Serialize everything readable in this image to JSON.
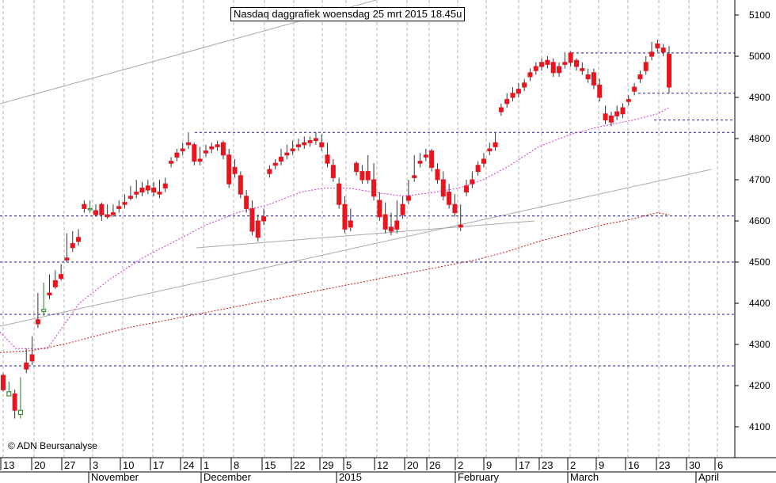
{
  "title": "Nasdaq daggrafiek woensdag 25 mrt 2015 18.45u",
  "copyright": "© ADN Beursanalyse",
  "colors": {
    "up": "#1a7f1a",
    "down": "#e8141e",
    "ma_short": "#cc33cc",
    "ma_long": "#cc1111",
    "support": "#1a1a99",
    "trend": "#a8a8a8"
  },
  "chart_data": {
    "type": "candlestick",
    "yticks": [
      4100,
      4200,
      4300,
      4400,
      4500,
      4600,
      4700,
      4800,
      4900,
      5000,
      5100
    ],
    "ylim": [
      4030,
      5120
    ],
    "day_labels": [
      "13",
      "20",
      "27",
      "3",
      "10",
      "17",
      "24",
      "1",
      "8",
      "15",
      "22",
      "29",
      "5",
      "12",
      "20",
      "26",
      "2",
      "9",
      "17",
      "23",
      "2",
      "9",
      "16",
      "23",
      "30",
      "6"
    ],
    "month_labels": [
      "November",
      "December",
      "2015",
      "February",
      "March",
      "April"
    ],
    "support_levels": [
      5008,
      4910,
      4845,
      4815,
      4612,
      4500,
      4373,
      4248
    ],
    "candles": [
      [
        4225,
        4230,
        4190,
        4185
      ],
      [
        4175,
        4210,
        4185,
        4195
      ],
      [
        4180,
        4190,
        4140,
        4120
      ],
      [
        4130,
        4220,
        4140,
        4120
      ],
      [
        4255,
        4290,
        4240,
        4230
      ],
      [
        4275,
        4320,
        4260,
        4250
      ],
      [
        4360,
        4425,
        4350,
        4340
      ],
      [
        4380,
        4450,
        4385,
        4370
      ],
      [
        4425,
        4470,
        4420,
        4410
      ],
      [
        4455,
        4480,
        4440,
        4435
      ],
      [
        4470,
        4495,
        4460,
        4455
      ],
      [
        4510,
        4570,
        4505,
        4500
      ],
      [
        4545,
        4575,
        4535,
        4525
      ],
      [
        4560,
        4580,
        4550,
        4540
      ],
      [
        4640,
        4650,
        4630,
        4620
      ],
      [
        4630,
        4650,
        4630,
        4620
      ],
      [
        4625,
        4640,
        4615,
        4610
      ],
      [
        4640,
        4645,
        4615,
        4600
      ],
      [
        4615,
        4640,
        4610,
        4605
      ],
      [
        4620,
        4640,
        4615,
        4610
      ],
      [
        4635,
        4650,
        4630,
        4620
      ],
      [
        4645,
        4665,
        4640,
        4630
      ],
      [
        4660,
        4685,
        4655,
        4650
      ],
      [
        4670,
        4700,
        4665,
        4655
      ],
      [
        4680,
        4695,
        4670,
        4660
      ],
      [
        4685,
        4700,
        4675,
        4665
      ],
      [
        4680,
        4695,
        4670,
        4660
      ],
      [
        4670,
        4700,
        4665,
        4655
      ],
      [
        4690,
        4705,
        4680,
        4670
      ],
      [
        4745,
        4755,
        4740,
        4730
      ],
      [
        4765,
        4775,
        4755,
        4745
      ],
      [
        4775,
        4790,
        4770,
        4760
      ],
      [
        4790,
        4815,
        4785,
        4775
      ],
      [
        4785,
        4790,
        4745,
        4735
      ],
      [
        4750,
        4780,
        4745,
        4735
      ],
      [
        4770,
        4785,
        4765,
        4755
      ],
      [
        4780,
        4790,
        4775,
        4765
      ],
      [
        4785,
        4795,
        4780,
        4770
      ],
      [
        4790,
        4795,
        4760,
        4750
      ],
      [
        4760,
        4775,
        4690,
        4680
      ],
      [
        4730,
        4750,
        4715,
        4705
      ],
      [
        4710,
        4720,
        4665,
        4655
      ],
      [
        4660,
        4675,
        4630,
        4620
      ],
      [
        4630,
        4650,
        4575,
        4565
      ],
      [
        4600,
        4615,
        4560,
        4550
      ],
      [
        4610,
        4630,
        4600,
        4590
      ],
      [
        4725,
        4735,
        4715,
        4705
      ],
      [
        4740,
        4750,
        4735,
        4725
      ],
      [
        4755,
        4775,
        4745,
        4735
      ],
      [
        4765,
        4785,
        4760,
        4750
      ],
      [
        4775,
        4795,
        4770,
        4760
      ],
      [
        4785,
        4800,
        4780,
        4770
      ],
      [
        4790,
        4805,
        4785,
        4775
      ],
      [
        4795,
        4805,
        4790,
        4780
      ],
      [
        4800,
        4815,
        4795,
        4785
      ],
      [
        4790,
        4810,
        4780,
        4770
      ],
      [
        4760,
        4790,
        4740,
        4730
      ],
      [
        4735,
        4750,
        4705,
        4695
      ],
      [
        4690,
        4705,
        4640,
        4630
      ],
      [
        4640,
        4660,
        4580,
        4570
      ],
      [
        4600,
        4630,
        4585,
        4575
      ],
      [
        4740,
        4745,
        4720,
        4710
      ],
      [
        4720,
        4735,
        4700,
        4690
      ],
      [
        4720,
        4760,
        4700,
        4690
      ],
      [
        4700,
        4740,
        4660,
        4650
      ],
      [
        4650,
        4670,
        4610,
        4600
      ],
      [
        4615,
        4645,
        4580,
        4570
      ],
      [
        4585,
        4620,
        4575,
        4565
      ],
      [
        4600,
        4650,
        4580,
        4570
      ],
      [
        4640,
        4660,
        4615,
        4605
      ],
      [
        4660,
        4700,
        4650,
        4640
      ],
      [
        4710,
        4760,
        4705,
        4695
      ],
      [
        4745,
        4765,
        4740,
        4730
      ],
      [
        4760,
        4775,
        4755,
        4745
      ],
      [
        4770,
        4775,
        4730,
        4720
      ],
      [
        4725,
        4740,
        4700,
        4690
      ],
      [
        4700,
        4720,
        4660,
        4650
      ],
      [
        4670,
        4690,
        4640,
        4630
      ],
      [
        4640,
        4665,
        4620,
        4610
      ],
      [
        4590,
        4640,
        4585,
        4575
      ],
      [
        4685,
        4700,
        4670,
        4660
      ],
      [
        4700,
        4720,
        4690,
        4680
      ],
      [
        4735,
        4745,
        4720,
        4710
      ],
      [
        4750,
        4765,
        4740,
        4730
      ],
      [
        4775,
        4790,
        4770,
        4760
      ],
      [
        4790,
        4815,
        4780,
        4770
      ],
      [
        4875,
        4885,
        4865,
        4855
      ],
      [
        4895,
        4910,
        4885,
        4875
      ],
      [
        4910,
        4925,
        4900,
        4890
      ],
      [
        4920,
        4935,
        4910,
        4900
      ],
      [
        4935,
        4945,
        4925,
        4915
      ],
      [
        4960,
        4970,
        4950,
        4940
      ],
      [
        4975,
        4985,
        4965,
        4955
      ],
      [
        4985,
        4995,
        4975,
        4965
      ],
      [
        4990,
        5000,
        4980,
        4970
      ],
      [
        4985,
        4995,
        4960,
        4950
      ],
      [
        4975,
        4985,
        4960,
        4950
      ],
      [
        4985,
        5010,
        4980,
        4970
      ],
      [
        5008,
        5012,
        4985,
        4975
      ],
      [
        4990,
        4995,
        4975,
        4965
      ],
      [
        4970,
        4985,
        4965,
        4955
      ],
      [
        4955,
        4970,
        4945,
        4935
      ],
      [
        4960,
        4970,
        4930,
        4920
      ],
      [
        4930,
        4945,
        4900,
        4890
      ],
      [
        4860,
        4880,
        4845,
        4835
      ],
      [
        4855,
        4865,
        4840,
        4830
      ],
      [
        4865,
        4880,
        4855,
        4845
      ],
      [
        4875,
        4885,
        4860,
        4850
      ],
      [
        4895,
        4905,
        4890,
        4880
      ],
      [
        4925,
        4935,
        4915,
        4905
      ],
      [
        4955,
        4965,
        4945,
        4935
      ],
      [
        4985,
        5000,
        4965,
        4955
      ],
      [
        5010,
        5035,
        5000,
        4990
      ],
      [
        5030,
        5040,
        5020,
        5010
      ],
      [
        5020,
        5030,
        5010,
        5000
      ],
      [
        5005,
        5025,
        4925,
        4910
      ]
    ],
    "ma_short": [
      [
        0,
        4330
      ],
      [
        20,
        4290
      ],
      [
        60,
        4290
      ],
      [
        100,
        4400
      ],
      [
        140,
        4460
      ],
      [
        180,
        4510
      ],
      [
        220,
        4550
      ],
      [
        260,
        4590
      ],
      [
        300,
        4620
      ],
      [
        340,
        4640
      ],
      [
        380,
        4670
      ],
      [
        410,
        4680
      ],
      [
        440,
        4680
      ],
      [
        470,
        4670
      ],
      [
        510,
        4660
      ],
      [
        550,
        4670
      ],
      [
        580,
        4680
      ],
      [
        610,
        4700
      ],
      [
        640,
        4730
      ],
      [
        680,
        4780
      ],
      [
        720,
        4810
      ],
      [
        760,
        4830
      ],
      [
        800,
        4845
      ],
      [
        830,
        4860
      ],
      [
        845,
        4875
      ]
    ],
    "ma_long": [
      [
        0,
        4280
      ],
      [
        40,
        4285
      ],
      [
        80,
        4300
      ],
      [
        120,
        4320
      ],
      [
        160,
        4340
      ],
      [
        200,
        4355
      ],
      [
        240,
        4370
      ],
      [
        280,
        4385
      ],
      [
        320,
        4400
      ],
      [
        360,
        4415
      ],
      [
        400,
        4430
      ],
      [
        440,
        4445
      ],
      [
        480,
        4460
      ],
      [
        520,
        4475
      ],
      [
        560,
        4490
      ],
      [
        600,
        4505
      ],
      [
        640,
        4525
      ],
      [
        680,
        4550
      ],
      [
        720,
        4570
      ],
      [
        760,
        4590
      ],
      [
        800,
        4605
      ],
      [
        830,
        4620
      ],
      [
        845,
        4615
      ]
    ]
  }
}
